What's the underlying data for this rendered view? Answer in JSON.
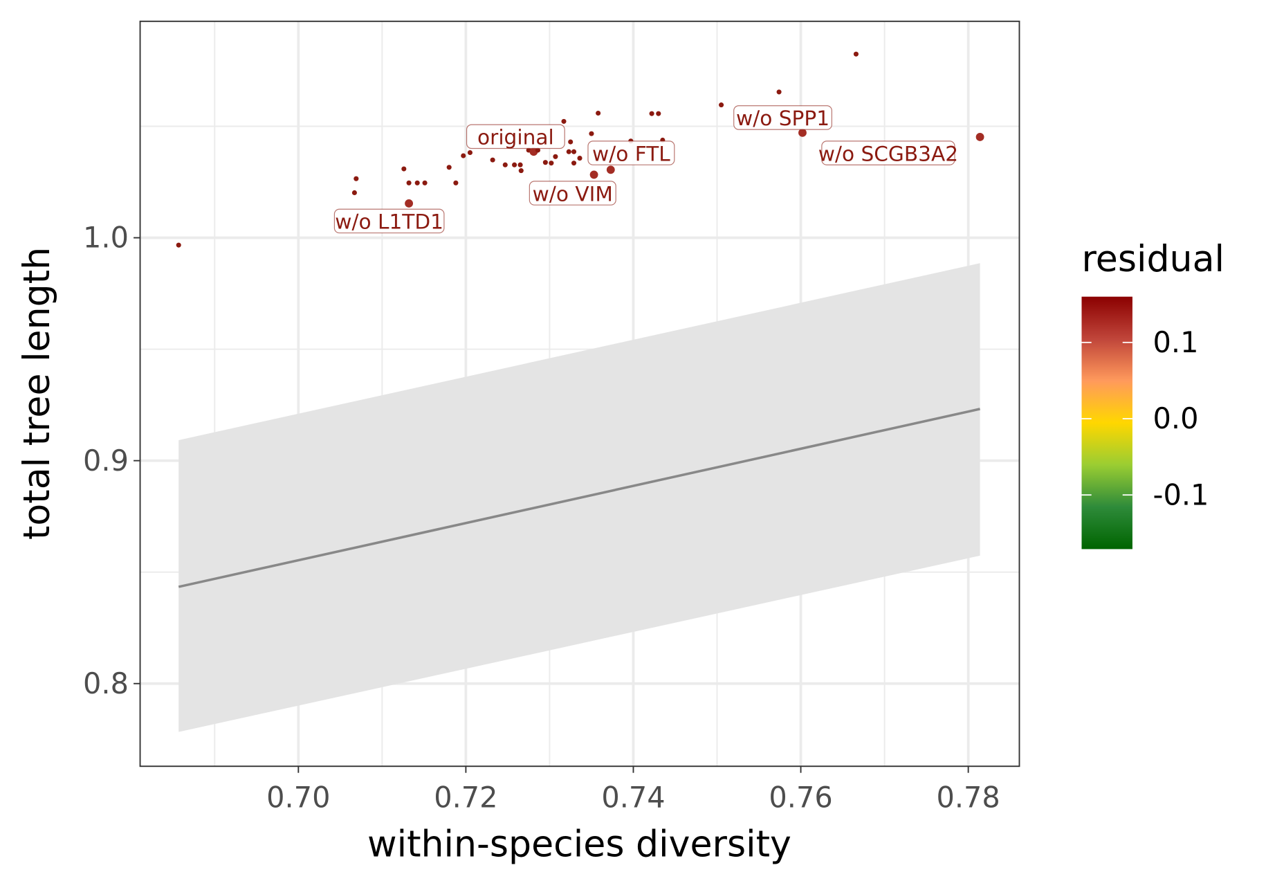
{
  "chart_data": {
    "type": "scatter",
    "xlabel": "within-species diversity",
    "ylabel": "total tree length",
    "xlim": [
      0.6811,
      0.7861
    ],
    "ylim": [
      0.7629,
      1.0971
    ],
    "x_ticks": [
      0.7,
      0.72,
      0.74,
      0.76,
      0.78
    ],
    "x_tick_labels": [
      "0.70",
      "0.72",
      "0.74",
      "0.76",
      "0.78"
    ],
    "y_ticks": [
      0.8,
      0.9,
      1.0
    ],
    "y_tick_labels": [
      "0.8",
      "0.9",
      "1.0"
    ],
    "grid": true,
    "points": [
      {
        "x": 0.6857,
        "y": 0.9967
      },
      {
        "x": 0.7067,
        "y": 1.0202
      },
      {
        "x": 0.7069,
        "y": 1.0265
      },
      {
        "x": 0.7126,
        "y": 1.0309
      },
      {
        "x": 0.7132,
        "y": 1.0246
      },
      {
        "x": 0.7132,
        "y": 1.0154,
        "large": true
      },
      {
        "x": 0.7142,
        "y": 1.0246
      },
      {
        "x": 0.7151,
        "y": 1.0246
      },
      {
        "x": 0.718,
        "y": 1.0316
      },
      {
        "x": 0.7188,
        "y": 1.0246
      },
      {
        "x": 0.7197,
        "y": 1.0368
      },
      {
        "x": 0.7205,
        "y": 1.0382
      },
      {
        "x": 0.7232,
        "y": 1.0349
      },
      {
        "x": 0.7247,
        "y": 1.0327
      },
      {
        "x": 0.7258,
        "y": 1.0327
      },
      {
        "x": 0.7265,
        "y": 1.0327
      },
      {
        "x": 0.7266,
        "y": 1.0301
      },
      {
        "x": 0.7275,
        "y": 1.0393
      },
      {
        "x": 0.7281,
        "y": 1.0386,
        "large": true
      },
      {
        "x": 0.7286,
        "y": 1.0393
      },
      {
        "x": 0.7295,
        "y": 1.0338
      },
      {
        "x": 0.7302,
        "y": 1.0335
      },
      {
        "x": 0.7307,
        "y": 1.0364
      },
      {
        "x": 0.7317,
        "y": 1.0522
      },
      {
        "x": 0.7323,
        "y": 1.0386
      },
      {
        "x": 0.7329,
        "y": 1.0386
      },
      {
        "x": 0.7325,
        "y": 1.043
      },
      {
        "x": 0.7329,
        "y": 1.0335
      },
      {
        "x": 0.7336,
        "y": 1.0357
      },
      {
        "x": 0.735,
        "y": 1.0467
      },
      {
        "x": 0.7353,
        "y": 1.0283,
        "large": true
      },
      {
        "x": 0.7358,
        "y": 1.0559
      },
      {
        "x": 0.7373,
        "y": 1.0305,
        "large": true
      },
      {
        "x": 0.7397,
        "y": 1.0434
      },
      {
        "x": 0.7422,
        "y": 1.0557
      },
      {
        "x": 0.743,
        "y": 1.0557
      },
      {
        "x": 0.7435,
        "y": 1.0438
      },
      {
        "x": 0.7505,
        "y": 1.0596
      },
      {
        "x": 0.7574,
        "y": 1.0654
      },
      {
        "x": 0.7602,
        "y": 1.0471,
        "large": true
      },
      {
        "x": 0.7666,
        "y": 1.0824
      },
      {
        "x": 0.7814,
        "y": 1.0452,
        "large": true
      }
    ],
    "labels": [
      {
        "text": "original",
        "x": 0.7281,
        "y": 1.0386
      },
      {
        "text": "w/o FTL",
        "x": 0.7373,
        "y": 1.0305
      },
      {
        "text": "w/o VIM",
        "x": 0.7353,
        "y": 1.0283
      },
      {
        "text": "w/o L1TD1",
        "x": 0.7132,
        "y": 1.0154
      },
      {
        "text": "w/o SPP1",
        "x": 0.7602,
        "y": 1.0471
      },
      {
        "text": "w/o SCGB3A2",
        "x": 0.7814,
        "y": 1.0452
      }
    ],
    "fit_line": {
      "x": [
        0.6857,
        0.7814
      ],
      "y": [
        0.8434,
        0.9232
      ]
    },
    "confidence_band": {
      "x": [
        0.6857,
        0.7814
      ],
      "upper": [
        0.9092,
        0.9886
      ],
      "lower": [
        0.7783,
        0.8574
      ]
    },
    "legend": {
      "title": "residual",
      "position": "right",
      "range": [
        -0.171,
        0.16
      ],
      "ticks": [
        0.1,
        0.0,
        -0.1
      ],
      "tick_labels": [
        "0.1",
        "0.0",
        "-0.1"
      ],
      "colors": [
        "#006400",
        "#2E8B3A",
        "#9ACD32",
        "#FFD700",
        "#FF9A5C",
        "#C0453A",
        "#8B0000"
      ]
    },
    "point_color": "#8B1A10",
    "label_color": "#8B1A10",
    "line_color": "#888888",
    "band_color": "#E4E4E4"
  }
}
